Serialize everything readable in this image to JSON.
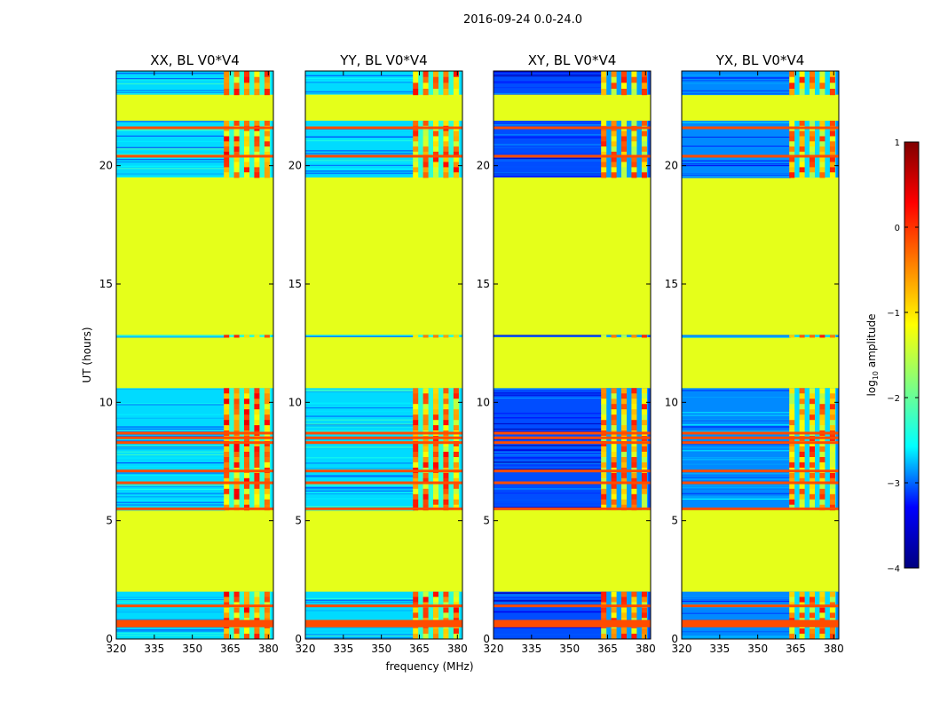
{
  "figure": {
    "suptitle": "2016-09-24 0.0-24.0"
  },
  "chart_data": {
    "type": "heatmap",
    "title": "2016-09-24 0.0-24.0",
    "ylabel": "UT (hours)",
    "xlabel": "frequency (MHz)",
    "xlim": [
      320,
      382
    ],
    "ylim": [
      0,
      24
    ],
    "x_ticks": [
      320,
      335,
      350,
      365,
      380
    ],
    "y_ticks": [
      0,
      5,
      10,
      15,
      20
    ],
    "panels": [
      {
        "title": "XX, BL V0*V4",
        "product": "XX"
      },
      {
        "title": "YY, BL V0*V4",
        "product": "YY"
      },
      {
        "title": "XY, BL V0*V4",
        "product": "XY"
      },
      {
        "title": "YX, BL V0*V4",
        "product": "YX"
      }
    ],
    "colorbar": {
      "label_prefix": "log",
      "label_sub": "10",
      "label_suffix": " amplitude",
      "range": [
        -4,
        1
      ],
      "ticks": [
        -4,
        -3,
        -2,
        -1,
        0,
        1
      ],
      "tick_labels": [
        "−4",
        "−3",
        "−2",
        "−1",
        "0",
        "1"
      ],
      "colormap": "jet",
      "colors": [
        "#000080",
        "#0000ff",
        "#00ffff",
        "#80ff80",
        "#ffff00",
        "#ff8000",
        "#ff0000",
        "#800000"
      ]
    },
    "flagged_level": -1.0,
    "flagged_ut_ranges": [
      [
        2.0,
        5.45
      ],
      [
        10.6,
        12.75
      ],
      [
        12.85,
        19.5
      ],
      [
        21.9,
        22.3
      ],
      [
        22.55,
        22.65
      ],
      [
        22.75,
        23.0
      ]
    ],
    "data_ut_ranges": [
      [
        0.0,
        2.0
      ],
      [
        5.45,
        10.6
      ],
      [
        12.75,
        12.85
      ],
      [
        19.5,
        21.9
      ],
      [
        23.0,
        24.0
      ]
    ],
    "orange_lines_ut": [
      0.55,
      0.65,
      0.75,
      1.4,
      5.5,
      6.6,
      7.1,
      8.3,
      8.5,
      8.7,
      20.4,
      21.6
    ],
    "rfi_band_mhz": [
      363,
      381
    ],
    "rfi_channels_mhz": [
      363.5,
      367.5,
      371.5,
      375.5,
      379.5
    ],
    "noise_levels": {
      "XX": -2.3,
      "YY": -2.3,
      "XY": -3.0,
      "YX": -2.7
    },
    "rfi_levels": {
      "XX": -0.3,
      "YY": -0.4,
      "XY": -0.5,
      "YX": -0.5
    }
  }
}
